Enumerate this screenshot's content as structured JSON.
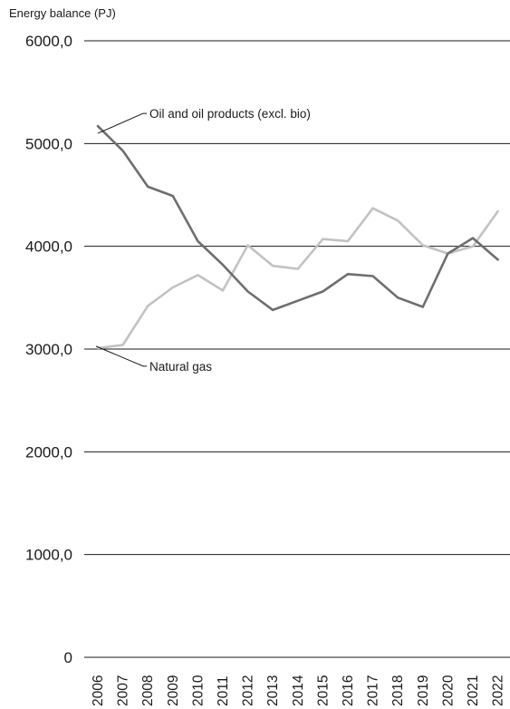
{
  "chart_data": {
    "type": "line",
    "ylabel": "Energy balance (PJ)",
    "x": [
      "2006",
      "2007",
      "2008",
      "2009",
      "2010",
      "2011",
      "2012",
      "2013",
      "2014",
      "2015",
      "2016",
      "2017",
      "2018",
      "2019",
      "2020",
      "2021",
      "2022"
    ],
    "ylim": [
      0,
      6000
    ],
    "yticks": [
      0,
      1000,
      2000,
      3000,
      4000,
      5000,
      6000
    ],
    "ytick_labels": [
      "0",
      "1000,0",
      "2000,0",
      "3000,0",
      "4000,0",
      "5000,0",
      "6000,0"
    ],
    "grid": true,
    "series": [
      {
        "name": "Oil and oil products (excl. bio)",
        "color": "#6e6e6e",
        "values": [
          5170,
          4930,
          4580,
          4490,
          4050,
          3820,
          3560,
          3380,
          3470,
          3560,
          3730,
          3710,
          3500,
          3410,
          3930,
          4080,
          3870
        ]
      },
      {
        "name": "Natural gas",
        "color": "#c2c2c2",
        "values": [
          3010,
          3040,
          3420,
          3600,
          3720,
          3570,
          4010,
          3810,
          3780,
          4070,
          4050,
          4370,
          4250,
          4010,
          3930,
          4000,
          4340
        ]
      }
    ]
  }
}
